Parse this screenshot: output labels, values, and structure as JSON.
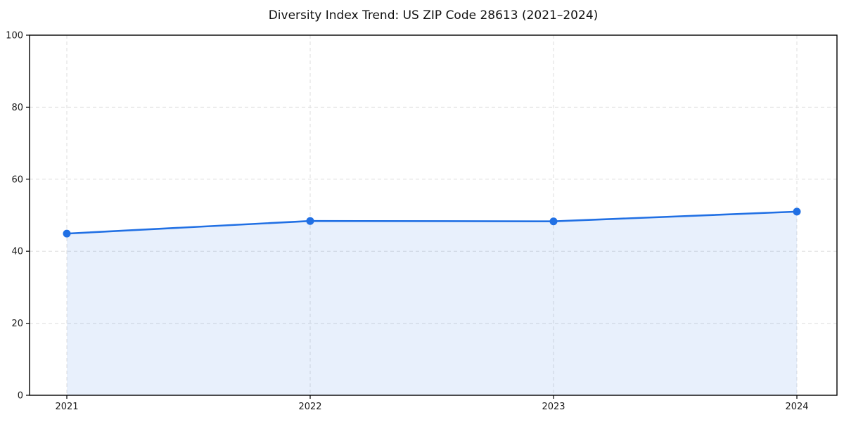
{
  "figure": {
    "background_color": "#ffffff"
  },
  "chart_data": {
    "type": "area",
    "title": "Diversity Index Trend: US ZIP Code 28613 (2021–2024)",
    "categories": [
      "2021",
      "2022",
      "2023",
      "2024"
    ],
    "values": [
      44.9,
      48.4,
      48.3,
      51.0
    ],
    "xlabel": "",
    "ylabel": "",
    "ylim": [
      0,
      100
    ],
    "y_ticks": [
      0,
      20,
      40,
      60,
      80,
      100
    ],
    "grid": true,
    "grid_style": "dashed",
    "legend": "none",
    "colors": {
      "line": "#2170e4",
      "marker": "#2170e4",
      "fill": "#2170e4",
      "fill_opacity": 0.1,
      "grid": "#dedede",
      "axis": "#000000",
      "tick_label": "#1a1a1a",
      "title": "#111111",
      "background": "#ffffff"
    }
  }
}
